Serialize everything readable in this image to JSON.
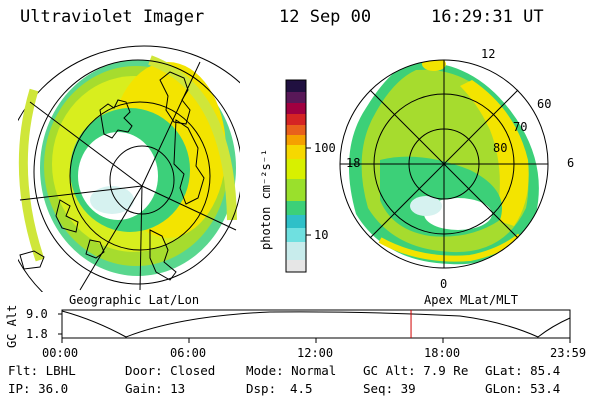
{
  "header": {
    "instrument": "Ultraviolet Imager",
    "date": "12 Sep 00",
    "time": "16:29:31 UT"
  },
  "left_panel": {
    "caption": "Geographic Lat/Lon"
  },
  "right_panel": {
    "caption": "Apex MLat/MLT",
    "mlt_labels": {
      "top": "12",
      "left": "18",
      "right": "6",
      "bottom": "0"
    },
    "lat_labels": [
      "60",
      "70",
      "80"
    ]
  },
  "colorbar": {
    "unit_label": "photon cm⁻²s⁻¹",
    "ticks": [
      "100",
      "10"
    ],
    "colors": [
      "#e6e6e6",
      "#6fe0e0",
      "#2fc0c8",
      "#3cd078",
      "#9ae02c",
      "#d8f000",
      "#f6d800",
      "#f5a000",
      "#e8601c",
      "#d42424",
      "#a00040",
      "#581858",
      "#201040"
    ]
  },
  "altitude_plot": {
    "axis_label": "GC Alt",
    "y_ticks": [
      "9.0",
      "1.8"
    ],
    "x_ticks": [
      "00:00",
      "06:00",
      "12:00",
      "18:00",
      "23:59"
    ],
    "current_time_hours": 16.49,
    "current_marker_color": "#d00000"
  },
  "info": {
    "row1": {
      "flt": "Flt: LBHL",
      "door": "Door: Closed",
      "mode": "Mode: Normal",
      "gc_alt": "GC Alt: 7.9 Re",
      "glat": "GLat: 85.4"
    },
    "row2": {
      "ip": "IP: 36.0",
      "gain": "Gain: 13",
      "dsp_label": "Dsp:",
      "dsp_value": "4.5",
      "seq": "Seq: 39",
      "glon": "GLon: 53.4"
    }
  }
}
